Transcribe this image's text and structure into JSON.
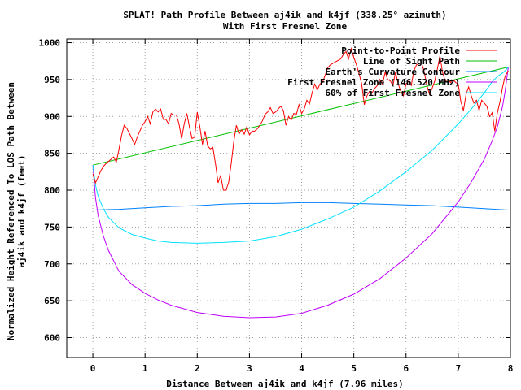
{
  "chart_data": {
    "type": "line",
    "title": "SPLAT! Path Profile Between aj4ik and k4jf (338.25° azimuth)",
    "subtitle": "With First Fresnel Zone",
    "xlabel": "Distance Between aj4ik and k4jf (7.96 miles)",
    "ylabel_line1": "Normalized Height Referenced To LOS Path Between",
    "ylabel_line2": "aj4ik and k4jf (feet)",
    "xlim": [
      -0.5,
      8
    ],
    "ylim": [
      573,
      1005
    ],
    "xticks": [
      0,
      1,
      2,
      3,
      4,
      5,
      6,
      7,
      8
    ],
    "yticks": [
      600,
      650,
      700,
      750,
      800,
      850,
      900,
      950,
      1000
    ],
    "grid": true,
    "legend_position": "top-right",
    "colors": {
      "profile": "#ff0000",
      "los": "#00c000",
      "curvature": "#0080ff",
      "fresnel": "#c000ff",
      "fresnel60": "#00e0ff"
    },
    "series": [
      {
        "key": "profile",
        "name": "Point-to-Point Profile",
        "x": [
          0,
          0.05,
          0.1,
          0.15,
          0.2,
          0.25,
          0.3,
          0.35,
          0.4,
          0.45,
          0.5,
          0.55,
          0.6,
          0.65,
          0.7,
          0.75,
          0.8,
          0.85,
          0.9,
          0.95,
          1.0,
          1.05,
          1.1,
          1.15,
          1.2,
          1.25,
          1.3,
          1.35,
          1.4,
          1.45,
          1.5,
          1.55,
          1.6,
          1.65,
          1.7,
          1.75,
          1.8,
          1.85,
          1.9,
          1.95,
          2.0,
          2.05,
          2.1,
          2.15,
          2.2,
          2.25,
          2.3,
          2.35,
          2.4,
          2.45,
          2.5,
          2.55,
          2.6,
          2.65,
          2.7,
          2.75,
          2.8,
          2.85,
          2.9,
          2.95,
          3.0,
          3.05,
          3.1,
          3.15,
          3.2,
          3.25,
          3.3,
          3.35,
          3.4,
          3.45,
          3.5,
          3.55,
          3.6,
          3.65,
          3.7,
          3.75,
          3.8,
          3.85,
          3.9,
          3.95,
          4.0,
          4.05,
          4.1,
          4.15,
          4.2,
          4.25,
          4.3,
          4.35,
          4.4,
          4.45,
          4.5,
          4.55,
          4.6,
          4.65,
          4.7,
          4.75,
          4.8,
          4.85,
          4.9,
          4.95,
          5.0,
          5.05,
          5.1,
          5.15,
          5.2,
          5.25,
          5.3,
          5.35,
          5.4,
          5.45,
          5.5,
          5.55,
          5.6,
          5.65,
          5.7,
          5.75,
          5.8,
          5.85,
          5.9,
          5.95,
          6.0,
          6.05,
          6.1,
          6.15,
          6.2,
          6.25,
          6.3,
          6.35,
          6.4,
          6.45,
          6.5,
          6.55,
          6.6,
          6.65,
          6.7,
          6.75,
          6.8,
          6.85,
          6.9,
          6.95,
          7.0,
          7.05,
          7.1,
          7.15,
          7.2,
          7.25,
          7.3,
          7.35,
          7.4,
          7.45,
          7.5,
          7.55,
          7.6,
          7.65,
          7.7,
          7.75,
          7.8,
          7.85,
          7.9,
          7.96
        ],
        "values": [
          822,
          810,
          818,
          826,
          832,
          836,
          839,
          842,
          845,
          838,
          855,
          874,
          888,
          884,
          877,
          870,
          862,
          872,
          880,
          888,
          893,
          900,
          890,
          906,
          910,
          906,
          910,
          896,
          896,
          890,
          904,
          902,
          902,
          890,
          870,
          890,
          904,
          886,
          870,
          872,
          906,
          886,
          862,
          880,
          860,
          856,
          858,
          836,
          810,
          820,
          800,
          800,
          810,
          836,
          866,
          888,
          876,
          882,
          876,
          886,
          875,
          880,
          880,
          883,
          888,
          894,
          903,
          906,
          912,
          904,
          906,
          910,
          914,
          908,
          888,
          900,
          895,
          904,
          903,
          916,
          904,
          910,
          922,
          917,
          932,
          944,
          936,
          944,
          946,
          956,
          966,
          970,
          972,
          974,
          976,
          978,
          984,
          988,
          978,
          992,
          980,
          970,
          958,
          944,
          916,
          928,
          934,
          932,
          938,
          942,
          950,
          944,
          960,
          950,
          948,
          942,
          960,
          944,
          934,
          928,
          944,
          948,
          942,
          962,
          970,
          972,
          972,
          960,
          942,
          930,
          938,
          948,
          964,
          982,
          960,
          948,
          950,
          946,
          950,
          946,
          944,
          920,
          908,
          930,
          940,
          928,
          918,
          922,
          908,
          922,
          918,
          914,
          900,
          905,
          880,
          905,
          920,
          940,
          955,
          962
        ]
      },
      {
        "key": "los",
        "name": "Line of Sight Path",
        "x": [
          0,
          7.96
        ],
        "values": [
          834,
          967
        ]
      },
      {
        "key": "curvature",
        "name": "Earth's Curvature Contour",
        "x": [
          0,
          0.5,
          1,
          1.5,
          2,
          2.5,
          3,
          3.5,
          4,
          4.5,
          5,
          5.5,
          6,
          6.5,
          7,
          7.5,
          7.96
        ],
        "values": [
          773,
          774,
          776,
          778,
          779,
          781,
          782,
          782,
          783,
          783,
          782,
          781,
          780,
          779,
          777,
          775,
          773
        ]
      },
      {
        "key": "fresnel",
        "name": "First Fresnel Zone (146.520 MHz)",
        "x": [
          0,
          0.05,
          0.1,
          0.2,
          0.3,
          0.5,
          0.75,
          1,
          1.25,
          1.5,
          2,
          2.5,
          3,
          3.5,
          4,
          4.5,
          5,
          5.5,
          6,
          6.5,
          7,
          7.25,
          7.5,
          7.65,
          7.75,
          7.85,
          7.9,
          7.96
        ],
        "values": [
          834,
          790,
          766,
          738,
          718,
          690,
          672,
          660,
          651,
          644,
          634,
          629,
          627,
          628,
          633,
          644,
          659,
          680,
          708,
          741,
          784,
          811,
          842,
          867,
          886,
          914,
          935,
          967
        ]
      },
      {
        "key": "fresnel60",
        "name": "60% of First Fresnel Zone",
        "x": [
          0,
          0.05,
          0.1,
          0.2,
          0.3,
          0.5,
          0.75,
          1,
          1.25,
          1.5,
          2,
          2.5,
          3,
          3.5,
          4,
          4.5,
          5,
          5.5,
          6,
          6.5,
          7,
          7.25,
          7.5,
          7.65,
          7.75,
          7.85,
          7.9,
          7.96
        ],
        "values": [
          834,
          807,
          792,
          775,
          763,
          749,
          740,
          735,
          731,
          729,
          728,
          729,
          731,
          737,
          747,
          761,
          777,
          799,
          825,
          854,
          890,
          910,
          932,
          947,
          954,
          959,
          962,
          967
        ]
      }
    ]
  }
}
